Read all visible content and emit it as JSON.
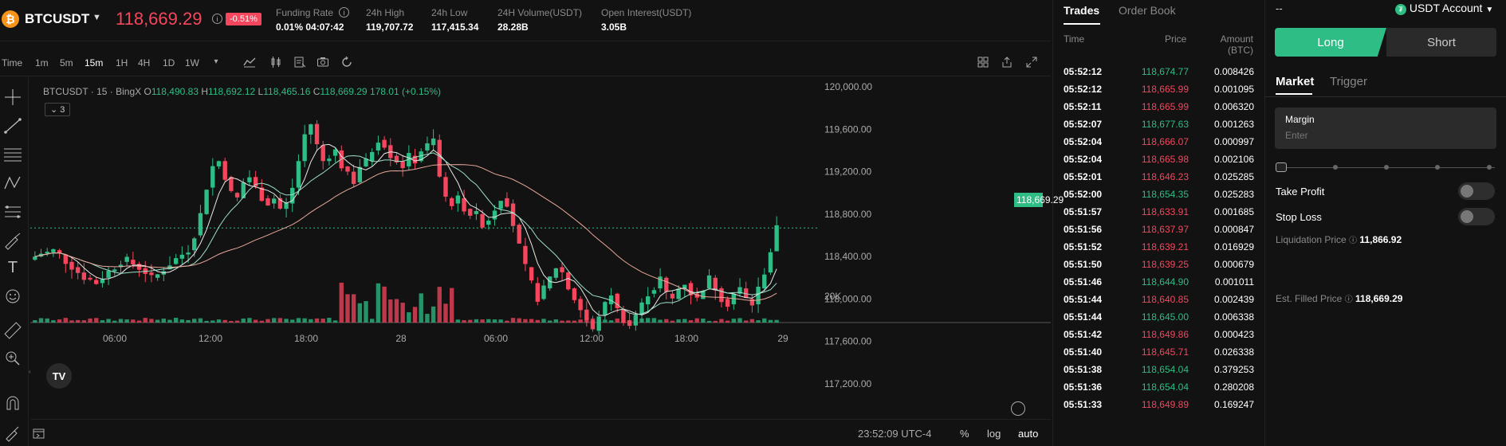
{
  "header": {
    "symbol": "BTCUSDT",
    "coin_glyph": "₿",
    "last_price": "118,669.29",
    "change_pct": "-0.51%",
    "stats": [
      {
        "label": "Funding Rate",
        "value": "0.01% 04:07:42"
      },
      {
        "label": "24h High",
        "value": "119,707.72"
      },
      {
        "label": "24h Low",
        "value": "117,415.34"
      },
      {
        "label": "24H Volume(USDT)",
        "value": "28.28B"
      },
      {
        "label": "Open Interest(USDT)",
        "value": "3.05B"
      }
    ]
  },
  "toolbar": {
    "intervals": [
      "Time",
      "1m",
      "5m",
      "15m",
      "1H",
      "4H",
      "1D",
      "1W"
    ],
    "active_interval": "15m"
  },
  "legend": {
    "title": "BTCUSDT · 15 · BingX",
    "o_label": "O",
    "o": "118,490.83",
    "h_label": "H",
    "h": "118,692.12",
    "l_label": "L",
    "l": "118,465.16",
    "c_label": "C",
    "c": "118,669.29",
    "change": "178.01 (+0.15%)",
    "indicator_count": "3"
  },
  "chart_data": {
    "type": "candlestick",
    "y_axis_labels": [
      "120,000.00",
      "119,600.00",
      "119,200.00",
      "118,800.00",
      "118,400.00",
      "118,000.00",
      "117,600.00",
      "117,200.00"
    ],
    "ylim": [
      117200,
      120000
    ],
    "current_price": "118,669.29",
    "x_axis_labels": [
      "06:00",
      "12:00",
      "18:00",
      "28",
      "06:00",
      "12:00",
      "18:00",
      "29"
    ],
    "volume_axis_label": "20K",
    "close_path": [
      118400,
      118430,
      118440,
      118460,
      118420,
      118350,
      118300,
      118250,
      118200,
      118180,
      118150,
      118200,
      118260,
      118300,
      118350,
      118370,
      118330,
      118290,
      118250,
      118200,
      118230,
      118280,
      118330,
      118380,
      118420,
      118460,
      118600,
      118800,
      119050,
      119250,
      119300,
      119150,
      119000,
      118950,
      119100,
      119150,
      119050,
      118950,
      118900,
      118950,
      118850,
      118900,
      119050,
      119300,
      119550,
      119650,
      119450,
      119300,
      119350,
      119400,
      119250,
      119200,
      119100,
      119250,
      119300,
      119400,
      119500,
      119450,
      119350,
      119300,
      119250,
      119350,
      119300,
      119400,
      119450,
      119500,
      119150,
      118950,
      118900,
      118950,
      118850,
      118800,
      118800,
      118700,
      118750,
      118850,
      118950,
      118900,
      118700,
      118500,
      118300,
      118150,
      118000,
      118100,
      118200,
      118300,
      118250,
      118100,
      118000,
      117900,
      117800,
      117700,
      117850,
      117950,
      118050,
      117900,
      117800,
      117750,
      117850,
      117950,
      118050,
      118100,
      118200,
      118050,
      118000,
      118100,
      118150,
      118050,
      118000,
      118100,
      118200,
      118100,
      118000,
      117950,
      118050,
      118100,
      118000,
      117950,
      118100,
      118250,
      118450,
      118669
    ]
  },
  "bottom": {
    "time_readout": "23:52:09 UTC-4",
    "percent": "%",
    "log": "log",
    "auto": "auto"
  },
  "trades": {
    "tabs": [
      "Trades",
      "Order Book"
    ],
    "headers": {
      "time": "Time",
      "price": "Price",
      "amount": "Amount",
      "amount_unit": "(BTC)"
    },
    "rows": [
      {
        "time": "05:52:12",
        "price": "118,674.77",
        "side": "up",
        "amount": "0.008426"
      },
      {
        "time": "05:52:12",
        "price": "118,665.99",
        "side": "dn",
        "amount": "0.001095"
      },
      {
        "time": "05:52:11",
        "price": "118,665.99",
        "side": "dn",
        "amount": "0.006320"
      },
      {
        "time": "05:52:07",
        "price": "118,677.63",
        "side": "up",
        "amount": "0.001263"
      },
      {
        "time": "05:52:04",
        "price": "118,666.07",
        "side": "dn",
        "amount": "0.000997"
      },
      {
        "time": "05:52:04",
        "price": "118,665.98",
        "side": "dn",
        "amount": "0.002106"
      },
      {
        "time": "05:52:01",
        "price": "118,646.23",
        "side": "dn",
        "amount": "0.025285"
      },
      {
        "time": "05:52:00",
        "price": "118,654.35",
        "side": "up",
        "amount": "0.025283"
      },
      {
        "time": "05:51:57",
        "price": "118,633.91",
        "side": "dn",
        "amount": "0.001685"
      },
      {
        "time": "05:51:56",
        "price": "118,637.97",
        "side": "dn",
        "amount": "0.000847"
      },
      {
        "time": "05:51:52",
        "price": "118,639.21",
        "side": "dn",
        "amount": "0.016929"
      },
      {
        "time": "05:51:50",
        "price": "118,639.25",
        "side": "dn",
        "amount": "0.000679"
      },
      {
        "time": "05:51:46",
        "price": "118,644.90",
        "side": "up",
        "amount": "0.001011"
      },
      {
        "time": "05:51:44",
        "price": "118,640.85",
        "side": "dn",
        "amount": "0.002439"
      },
      {
        "time": "05:51:44",
        "price": "118,645.00",
        "side": "up",
        "amount": "0.006338"
      },
      {
        "time": "05:51:42",
        "price": "118,649.86",
        "side": "dn",
        "amount": "0.000423"
      },
      {
        "time": "05:51:40",
        "price": "118,645.71",
        "side": "dn",
        "amount": "0.026338"
      },
      {
        "time": "05:51:38",
        "price": "118,654.04",
        "side": "up",
        "amount": "0.379253"
      },
      {
        "time": "05:51:36",
        "price": "118,654.04",
        "side": "up",
        "amount": "0.280208"
      },
      {
        "time": "05:51:33",
        "price": "118,649.89",
        "side": "dn",
        "amount": "0.169247"
      }
    ]
  },
  "order": {
    "top_left": "--",
    "account": "USDT Account",
    "long": "Long",
    "short": "Short",
    "tabs": [
      "Market",
      "Trigger"
    ],
    "margin_label": "Margin",
    "margin_placeholder": "Enter",
    "take_profit": "Take Profit",
    "stop_loss": "Stop Loss",
    "liq_label": "Liquidation Price",
    "liq_value": "11,866.92",
    "est_label": "Est. Filled Price",
    "est_value": "118,669.29"
  },
  "colors": {
    "up": "#2ebd85",
    "down": "#f6465d",
    "accent": "#2ebd85"
  }
}
